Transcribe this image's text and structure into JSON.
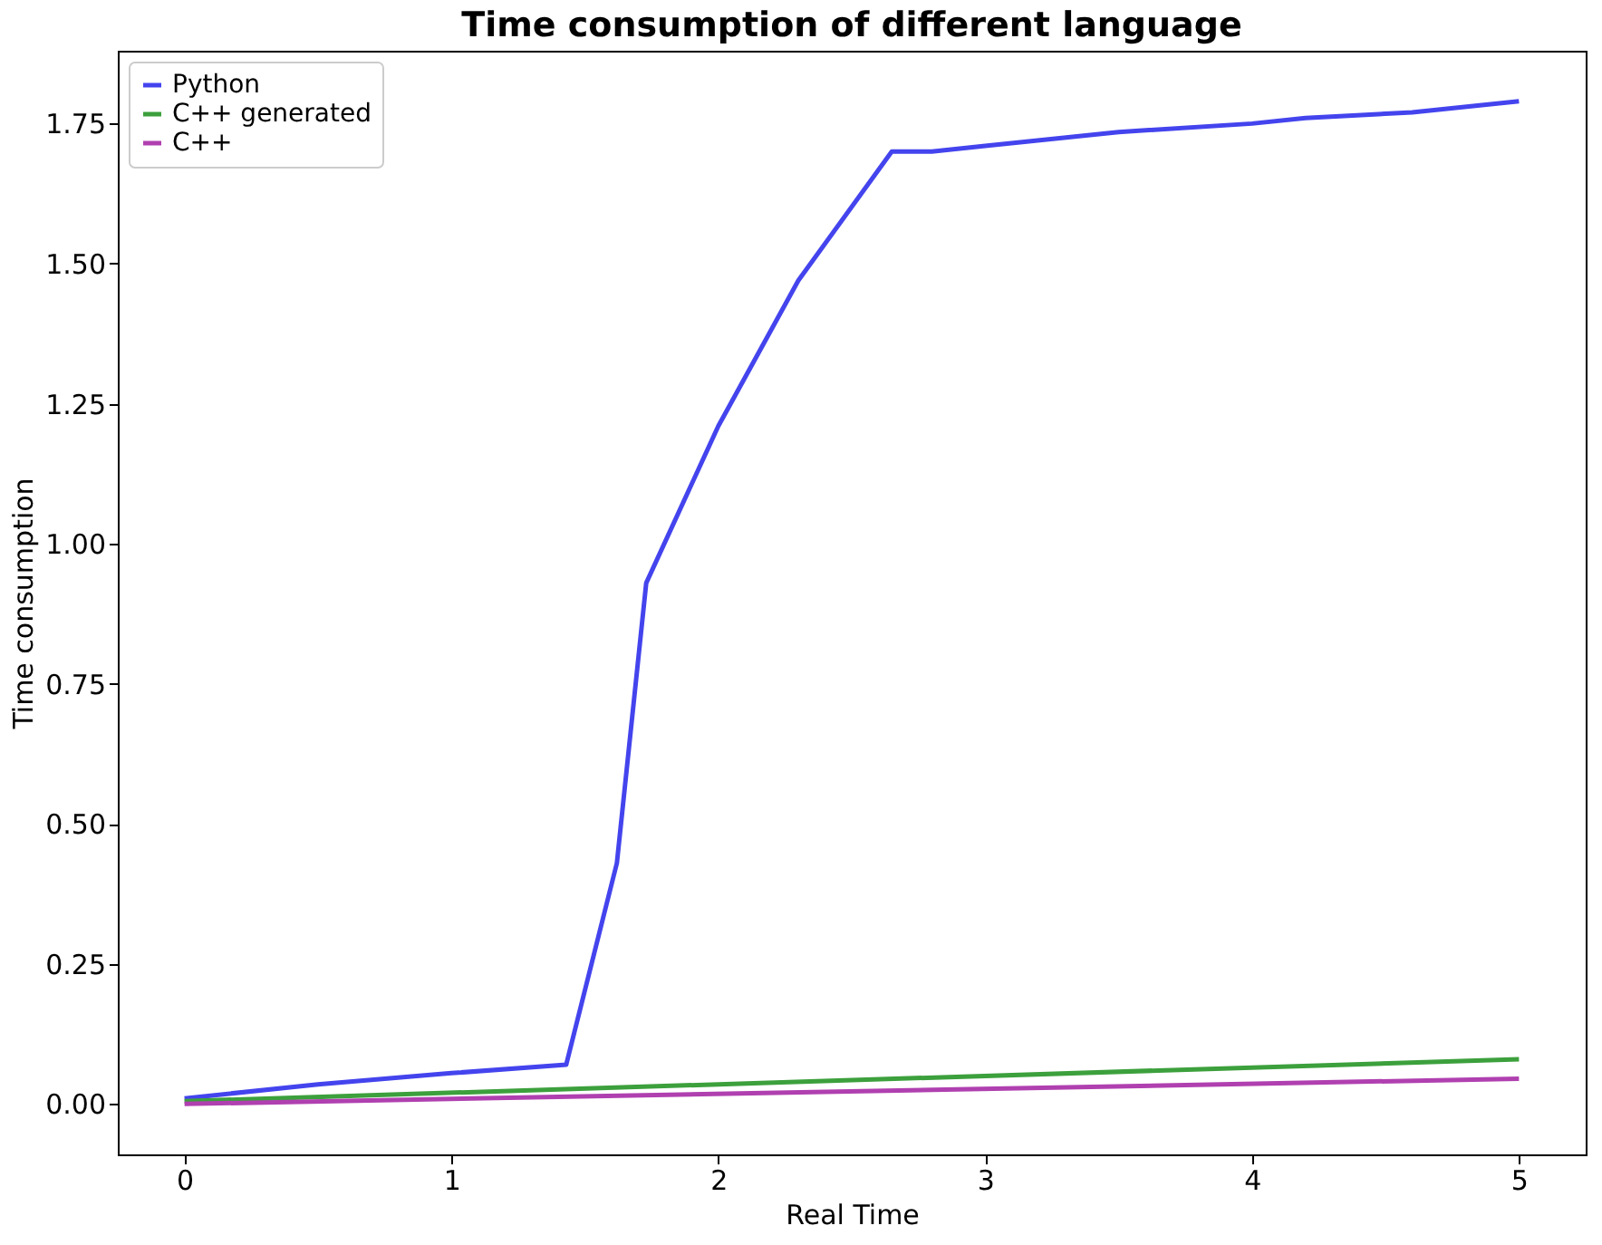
{
  "chart_data": {
    "type": "line",
    "title": "Time consumption of different language",
    "xlabel": "Real Time",
    "ylabel": "Time consumption",
    "xlim": [
      -0.25,
      5.25
    ],
    "xticks": [
      0,
      1,
      2,
      3,
      4,
      5
    ],
    "ylim": [
      -0.09,
      1.88
    ],
    "yticks": [
      {
        "value": 0,
        "label": "0.00"
      },
      0.25,
      {
        "value": 0.5,
        "label": "0.50"
      },
      0.75,
      {
        "value": 1,
        "label": "1.00"
      },
      1.25,
      {
        "value": 1.5,
        "label": "1.50"
      },
      1.75
    ],
    "grid": false,
    "legend": "top left",
    "line_style": "solid",
    "marker": "none",
    "series": [
      {
        "name": "Python",
        "color": "#4444ee",
        "x": [
          0,
          0.5,
          1,
          1.43,
          1.62,
          1.73,
          2,
          2.3,
          2.65,
          2.8,
          3,
          3.5,
          4,
          4.2,
          4.6,
          5
        ],
        "values": [
          0.01,
          0.035,
          0.055,
          0.07,
          0.43,
          0.93,
          1.21,
          1.47,
          1.7,
          1.7,
          1.71,
          1.735,
          1.75,
          1.76,
          1.77,
          1.79
        ]
      },
      {
        "name": "C++ generated",
        "color": "#3ca03c",
        "x": [
          0,
          5
        ],
        "values": [
          0.005,
          0.08
        ]
      },
      {
        "name": "C++",
        "color": "#b040b0",
        "x": [
          0,
          5
        ],
        "values": [
          0.0,
          0.045
        ]
      }
    ]
  }
}
